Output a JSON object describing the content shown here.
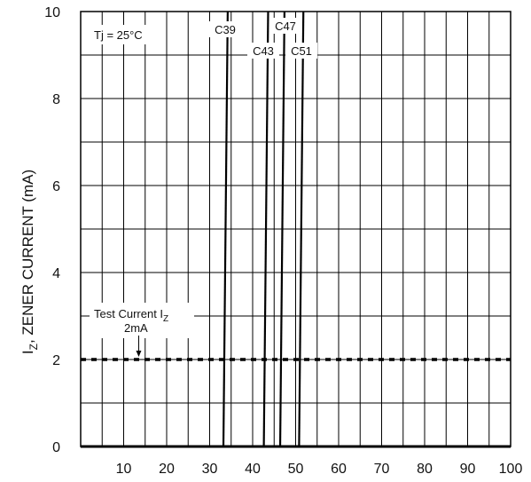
{
  "chart_data": {
    "type": "line",
    "title": "",
    "xlabel": "",
    "ylabel": "I",
    "ylabel_sub": "Z",
    "ylabel_rest": ", ZENER CURRENT (mA)",
    "xlim": [
      0,
      100
    ],
    "ylim": [
      0,
      10
    ],
    "x_ticks": [
      10,
      20,
      30,
      40,
      50,
      60,
      70,
      80,
      90,
      100
    ],
    "x_tick_labels": [
      "10",
      "20",
      "30",
      "40",
      "50",
      "60",
      "70",
      "80",
      "90",
      "100"
    ],
    "y_ticks": [
      0,
      2,
      4,
      6,
      8,
      10
    ],
    "y_tick_labels": [
      "0",
      "2",
      "4",
      "6",
      "8",
      "10"
    ],
    "grid": true,
    "series": [
      {
        "name": "C39",
        "x": [
          33.2,
          34.2
        ],
        "y": [
          0,
          10
        ]
      },
      {
        "name": "C43",
        "x": [
          42.6,
          43.6
        ],
        "y": [
          0,
          10
        ]
      },
      {
        "name": "C47",
        "x": [
          46.4,
          47.4
        ],
        "y": [
          0,
          10
        ]
      },
      {
        "name": "C51",
        "x": [
          50.8,
          51.8
        ],
        "y": [
          0,
          10
        ]
      }
    ],
    "test_current_line": {
      "y": 2,
      "style": "dashed"
    },
    "annotations": {
      "temperature": "Tj = 25°C",
      "test_current": "Test Current I",
      "test_current_sub": "Z",
      "test_current_value": "2mA",
      "test_current_arrow_x": 13.5
    },
    "colors": {
      "line": "#000000",
      "grid": "#000000",
      "background": "#ffffff"
    }
  }
}
